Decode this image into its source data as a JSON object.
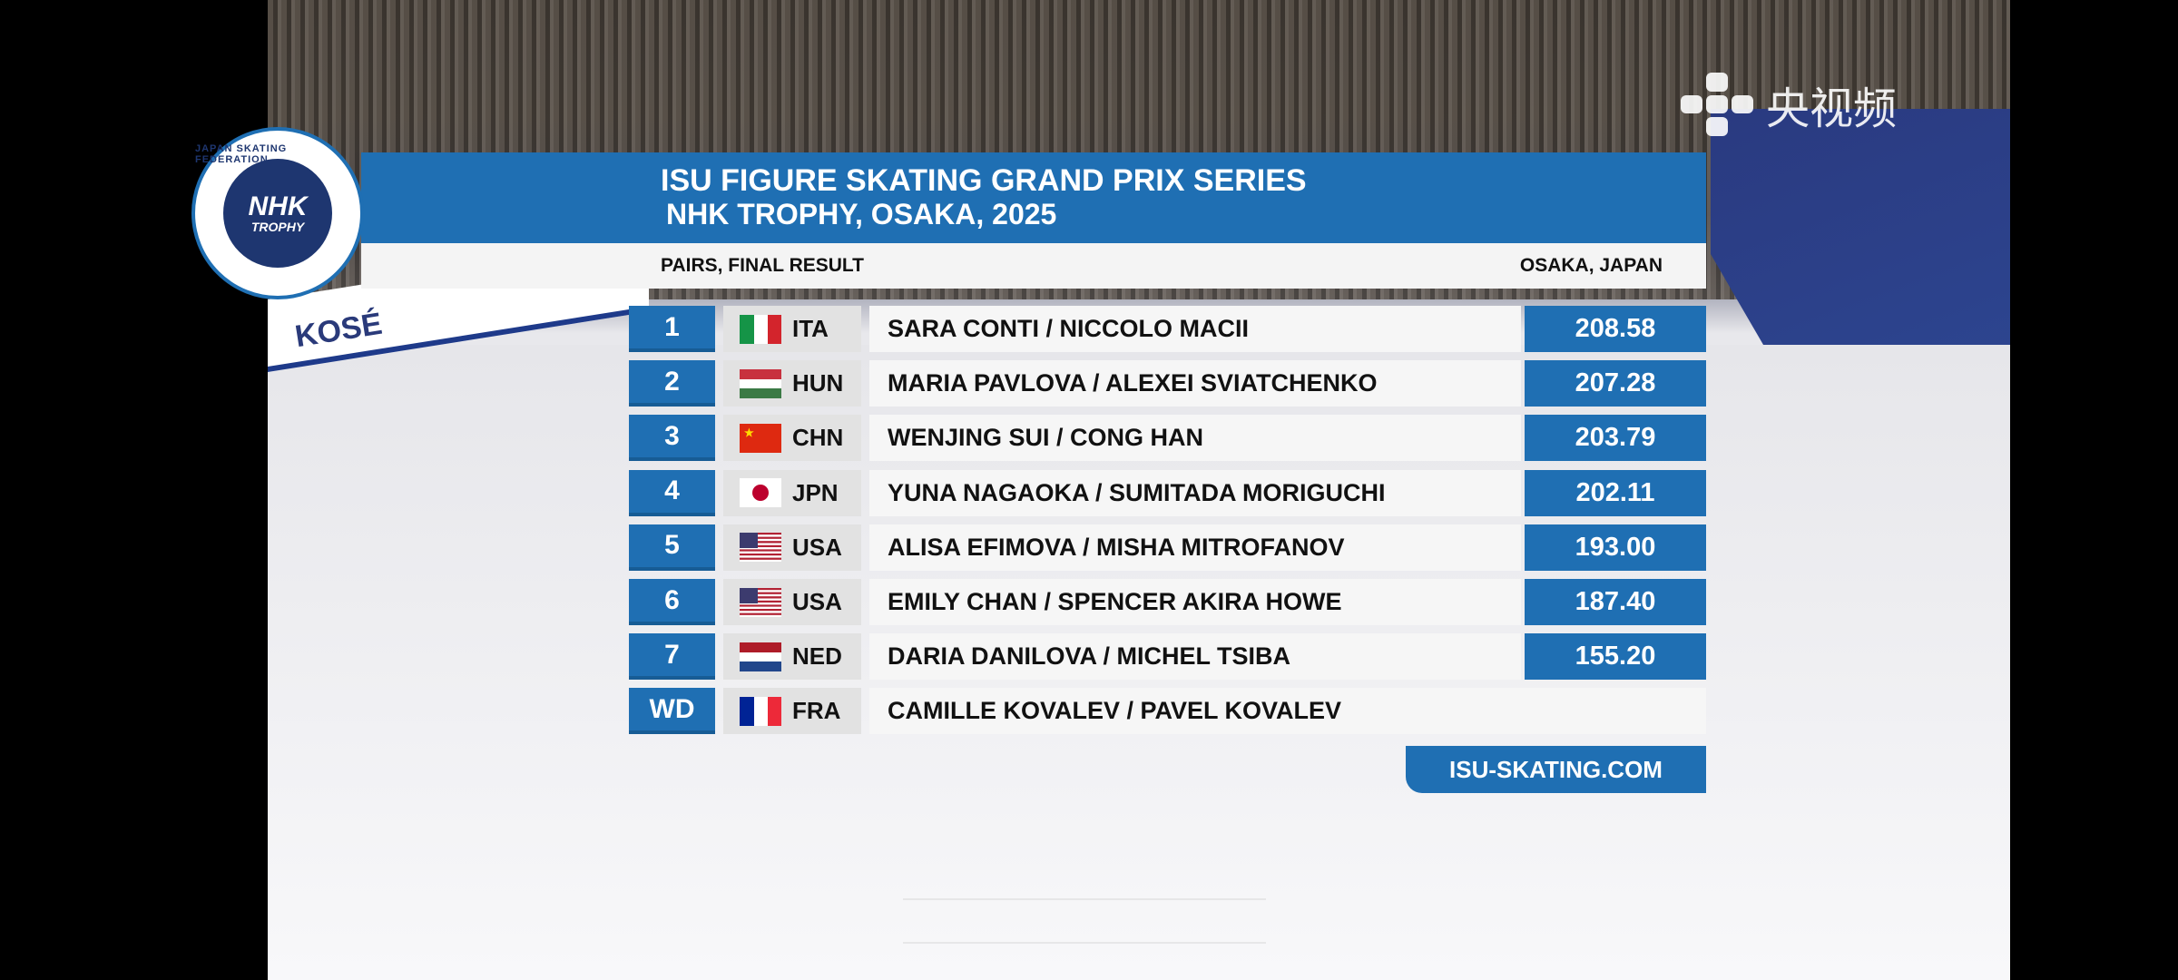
{
  "broadcaster": {
    "logo_text": "央视频"
  },
  "event_logo": {
    "ring_text": "JAPAN SKATING FEDERATION",
    "main": "NHK",
    "sub": "TROPHY"
  },
  "header": {
    "title": "ISU FIGURE SKATING GRAND PRIX SERIES",
    "subtitle": "NHK TROPHY, OSAKA, 2025",
    "category": "PAIRS, FINAL RESULT",
    "location": "OSAKA, JAPAN"
  },
  "accent_color": "#1f6fb3",
  "results": [
    {
      "rank": "1",
      "nation": "ITA",
      "flag": "italy-flag",
      "names": "SARA CONTI / NICCOLO MACII",
      "score": "208.58"
    },
    {
      "rank": "2",
      "nation": "HUN",
      "flag": "hungary-flag",
      "names": "MARIA PAVLOVA / ALEXEI SVIATCHENKO",
      "score": "207.28"
    },
    {
      "rank": "3",
      "nation": "CHN",
      "flag": "china-flag",
      "names": "WENJING SUI / CONG HAN",
      "score": "203.79"
    },
    {
      "rank": "4",
      "nation": "JPN",
      "flag": "japan-flag",
      "names": "YUNA NAGAOKA / SUMITADA MORIGUCHI",
      "score": "202.11"
    },
    {
      "rank": "5",
      "nation": "USA",
      "flag": "usa-flag",
      "names": "ALISA EFIMOVA / MISHA MITROFANOV",
      "score": "193.00"
    },
    {
      "rank": "6",
      "nation": "USA",
      "flag": "usa-flag",
      "names": "EMILY CHAN / SPENCER AKIRA HOWE",
      "score": "187.40"
    },
    {
      "rank": "7",
      "nation": "NED",
      "flag": "netherlands-flag",
      "names": "DARIA DANILOVA / MICHEL TSIBA",
      "score": "155.20"
    },
    {
      "rank": "WD",
      "nation": "FRA",
      "flag": "france-flag",
      "names": "CAMILLE KOVALEV / PAVEL KOVALEV",
      "score": null
    }
  ],
  "footer": {
    "website": "ISU-SKATING.COM"
  },
  "rink_ads": {
    "left": "KOSÉ"
  }
}
